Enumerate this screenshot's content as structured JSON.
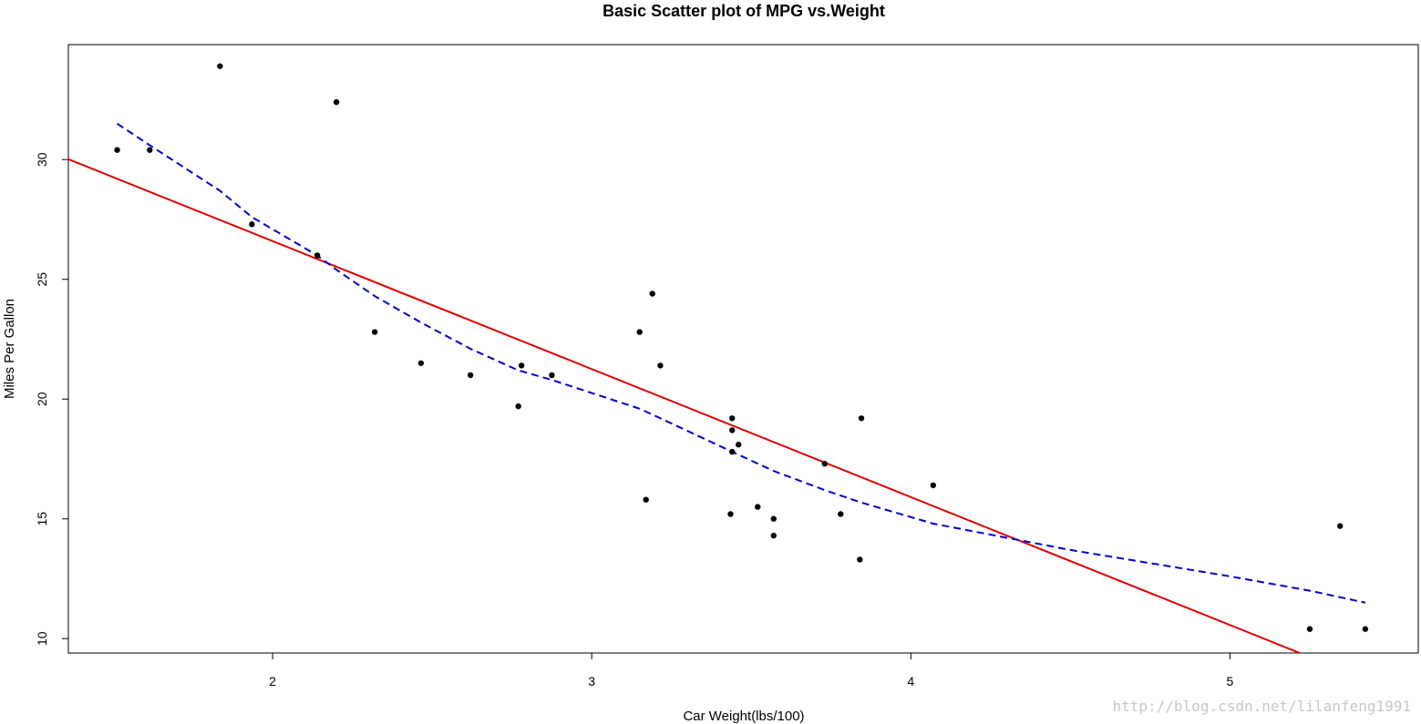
{
  "chart_data": {
    "type": "scatter",
    "title": "Basic Scatter plot of MPG vs.Weight",
    "xlabel": "Car Weight(lbs/100)",
    "ylabel": "Miles Per Gallon",
    "xlim": [
      1.36,
      5.59
    ],
    "ylim": [
      9.4,
      34.8
    ],
    "xticks": [
      2,
      3,
      4,
      5
    ],
    "yticks": [
      10,
      15,
      20,
      25,
      30
    ],
    "grid": false,
    "legend": "none",
    "points": {
      "x": [
        1.513,
        1.615,
        1.835,
        1.935,
        2.14,
        2.2,
        2.32,
        2.465,
        2.62,
        2.77,
        2.78,
        2.875,
        3.15,
        3.17,
        3.19,
        3.215,
        3.435,
        3.44,
        3.44,
        3.44,
        3.46,
        3.52,
        3.57,
        3.57,
        3.73,
        3.78,
        3.84,
        3.845,
        4.07,
        5.25,
        5.345,
        5.424
      ],
      "y": [
        30.4,
        30.4,
        33.9,
        27.3,
        26.0,
        32.4,
        22.8,
        21.5,
        21.0,
        19.7,
        21.4,
        21.0,
        22.8,
        15.8,
        24.4,
        21.4,
        15.2,
        17.8,
        18.7,
        19.2,
        18.1,
        15.5,
        15.0,
        14.3,
        17.3,
        15.2,
        13.3,
        19.2,
        16.4,
        10.4,
        14.7,
        10.4
      ],
      "color": "#000000"
    },
    "series": [
      {
        "type": "regression-line",
        "intercept": 37.285,
        "slope": -5.344,
        "color": "#e00000",
        "style": "solid"
      },
      {
        "type": "lowess",
        "color": "#0000cc",
        "style": "dashed",
        "x": [
          1.513,
          1.615,
          1.835,
          1.935,
          2.14,
          2.2,
          2.32,
          2.465,
          2.62,
          2.77,
          2.875,
          3.15,
          3.215,
          3.44,
          3.57,
          3.73,
          3.84,
          4.07,
          4.5,
          5.0,
          5.25,
          5.424
        ],
        "y": [
          31.5,
          30.6,
          28.7,
          27.6,
          26.0,
          25.4,
          24.3,
          23.2,
          22.1,
          21.2,
          20.8,
          19.6,
          19.2,
          17.8,
          17.0,
          16.2,
          15.7,
          14.8,
          13.7,
          12.6,
          12.0,
          11.5
        ]
      }
    ]
  },
  "watermark": "http://blog.csdn.net/lilanfeng1991"
}
